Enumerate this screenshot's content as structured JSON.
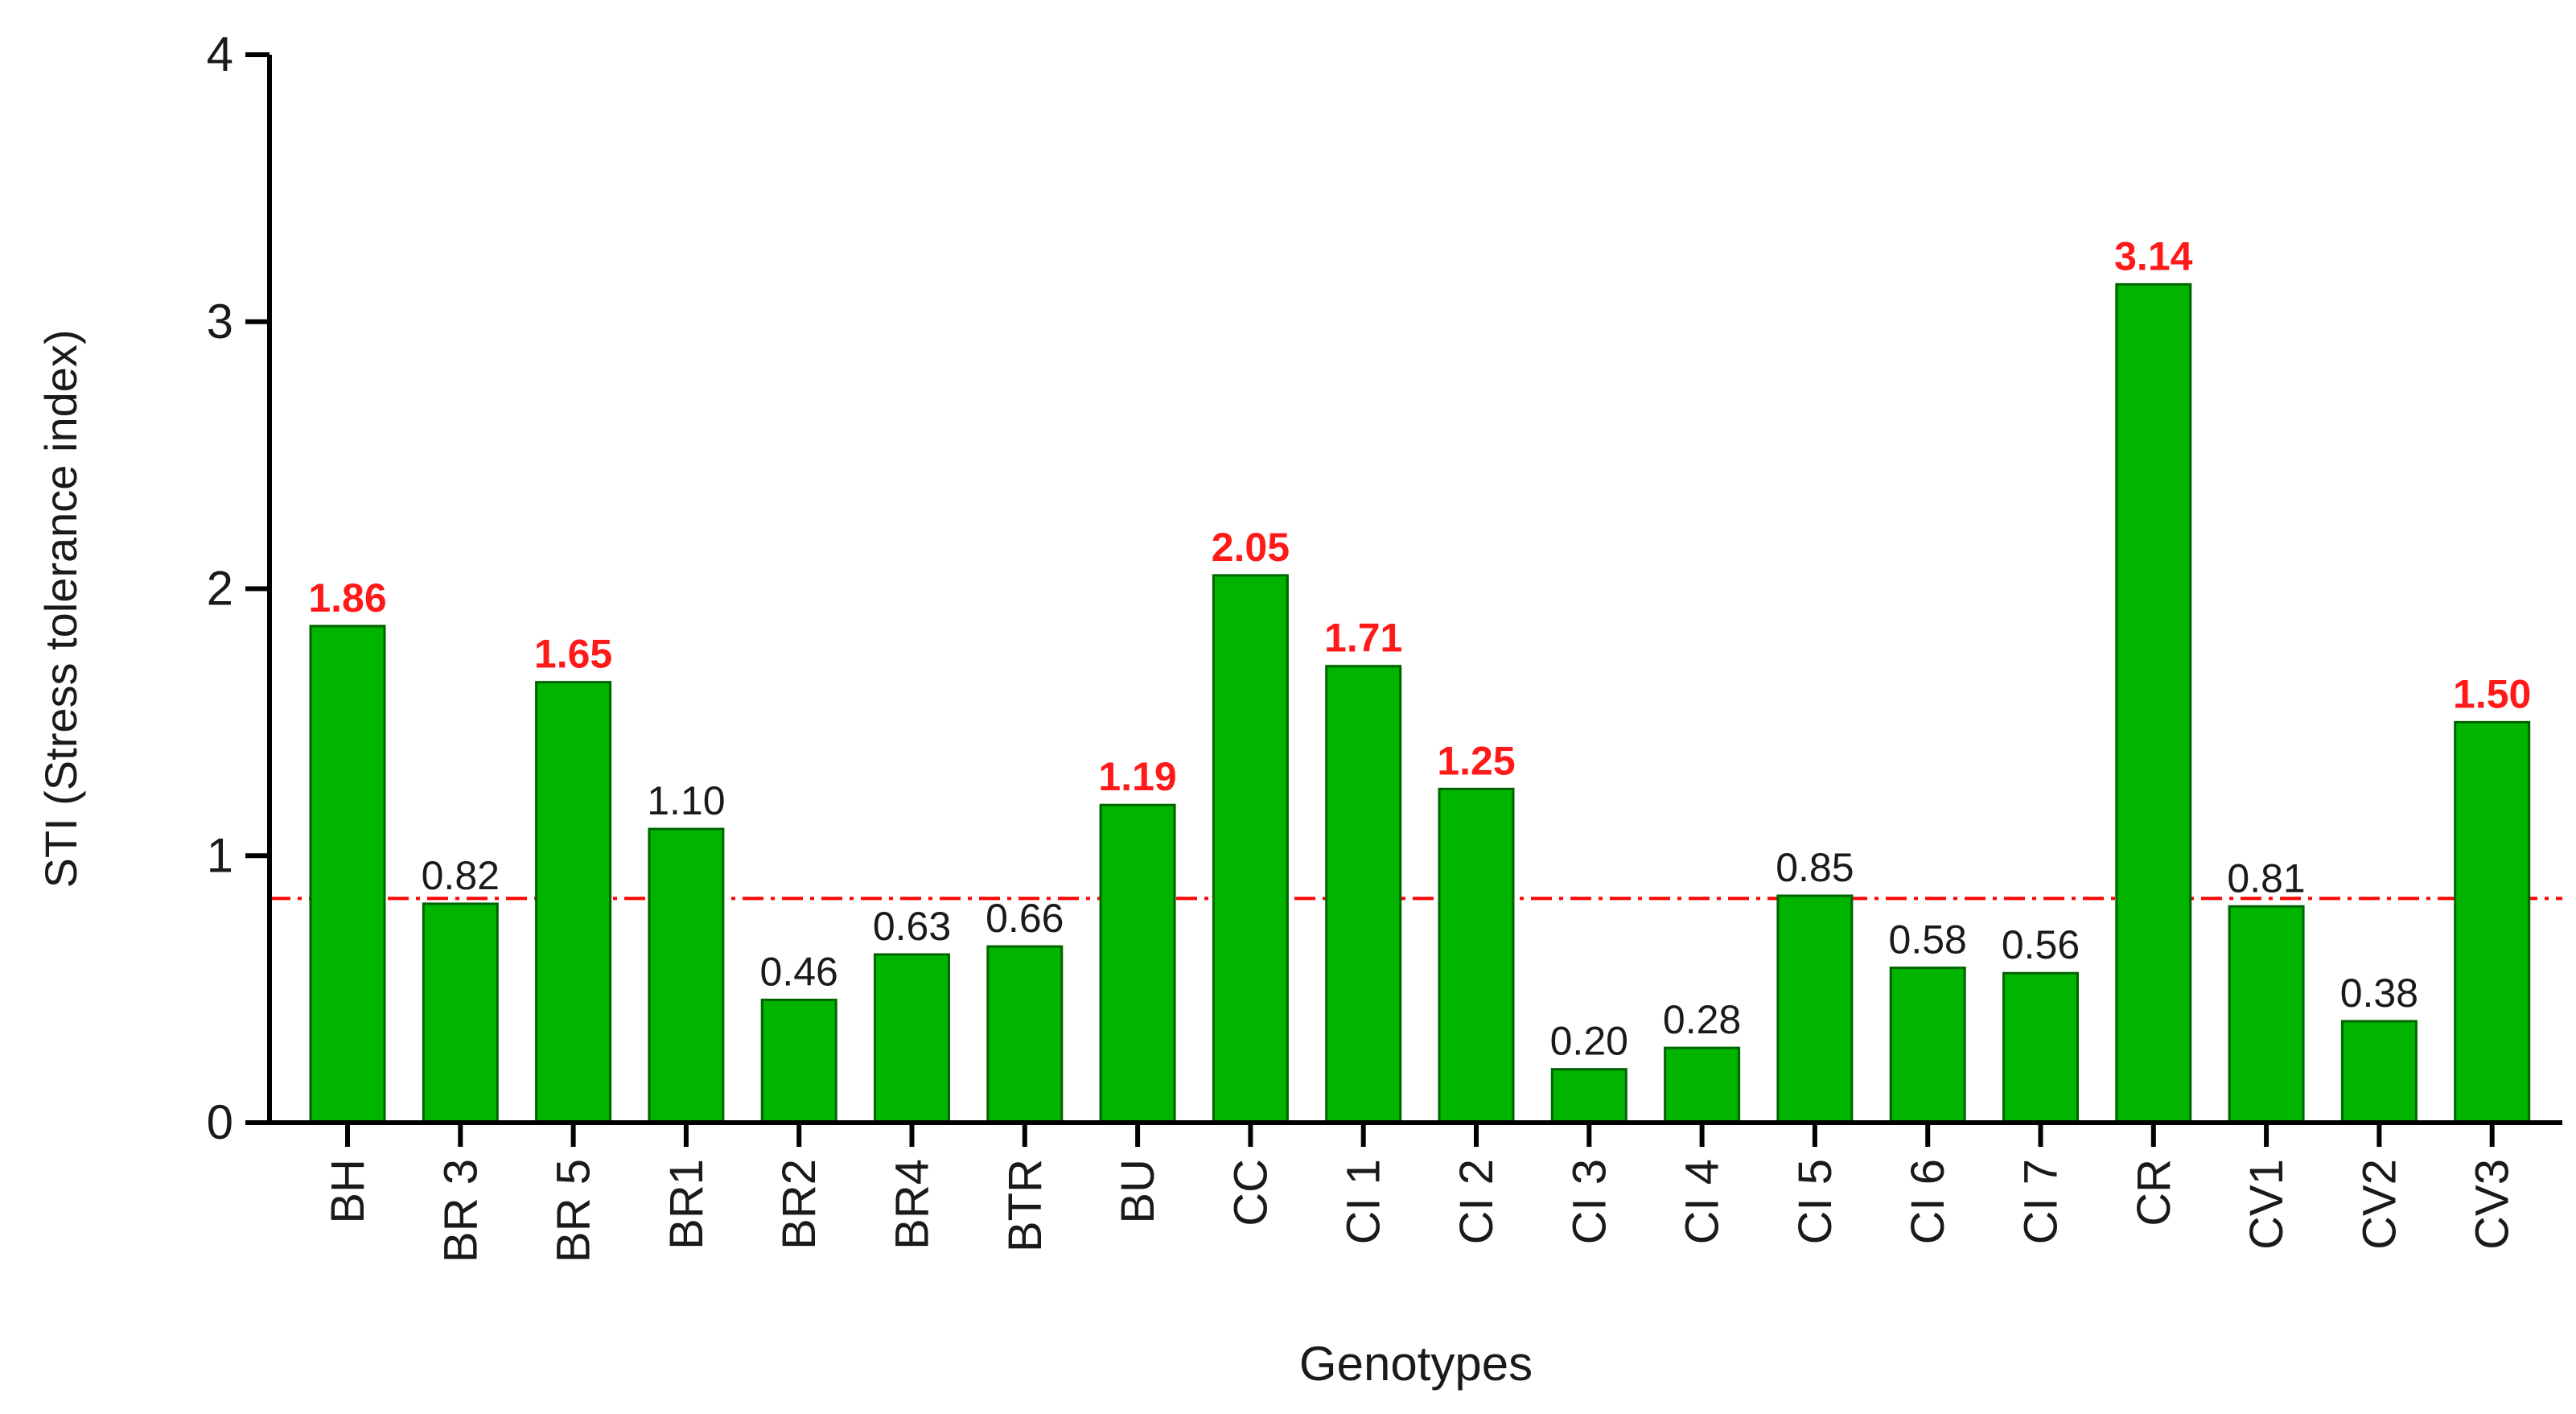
{
  "chart_data": {
    "type": "bar",
    "xlabel": "Genotypes",
    "ylabel": "STI (Stress tolerance index)",
    "ylim": [
      0,
      4
    ],
    "yticks": [
      "0",
      "1",
      "2",
      "3",
      "4"
    ],
    "categories": [
      "BH",
      "BR 3",
      "BR 5",
      "BR1",
      "BR2",
      "BR4",
      "BTR",
      "BU",
      "CC",
      "CI 1",
      "CI 2",
      "CI 3",
      "CI 4",
      "CI 5",
      "CI 6",
      "CI 7",
      "CR",
      "CV1",
      "CV2",
      "CV3"
    ],
    "values": [
      1.86,
      0.82,
      1.65,
      1.1,
      0.46,
      0.63,
      0.66,
      1.19,
      2.05,
      1.71,
      1.25,
      0.2,
      0.28,
      0.85,
      0.58,
      0.56,
      3.14,
      0.81,
      0.38,
      1.5
    ],
    "value_labels": [
      "1.86",
      "0.82",
      "1.65",
      "1.10",
      "0.46",
      "0.63",
      "0.66",
      "1.19",
      "2.05",
      "1.71",
      "1.25",
      "0.20",
      "0.28",
      "0.85",
      "0.58",
      "0.56",
      "3.14",
      "0.81",
      "0.38",
      "1.50"
    ],
    "highlighted": [
      true,
      false,
      true,
      false,
      false,
      false,
      false,
      true,
      true,
      true,
      true,
      false,
      false,
      false,
      false,
      false,
      true,
      false,
      false,
      true
    ],
    "reference_line": 0.84,
    "grid": false,
    "legend": "none",
    "colors": {
      "bar_fill": "#00b400",
      "bar_stroke": "#006400",
      "highlight_label": "#ff1a1a",
      "normal_label": "#1a1a1a",
      "reference_line": "#ff0000",
      "axis": "#000000"
    }
  }
}
